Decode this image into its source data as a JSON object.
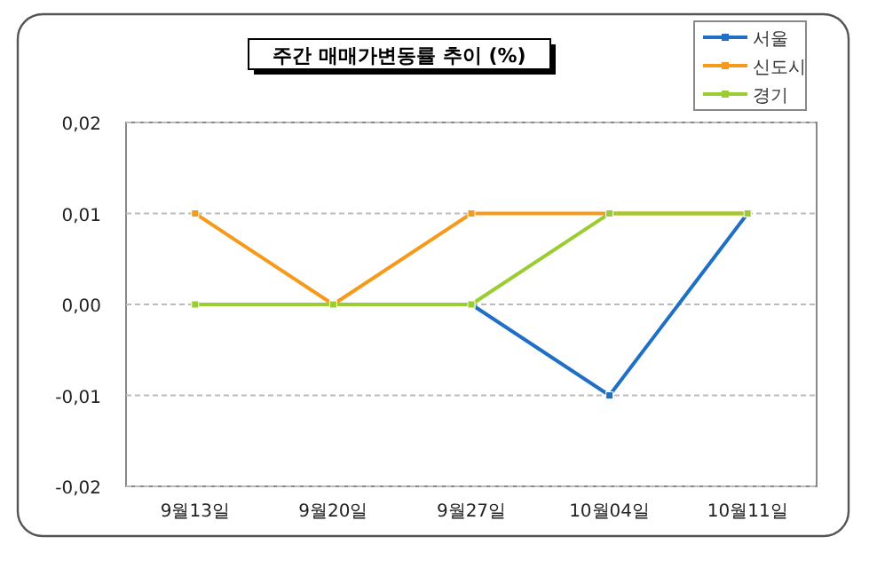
{
  "chart_data": {
    "type": "line",
    "title": "주간 매매가변동률 추이 (%)",
    "categories": [
      "9월13일",
      "9월20일",
      "9월27일",
      "10월04일",
      "10월11일"
    ],
    "series": [
      {
        "name": "서울",
        "color": "#1f6fc5",
        "values": [
          0,
          0,
          0,
          -0.01,
          0.01
        ]
      },
      {
        "name": "신도시",
        "color": "#f59a1b",
        "values": [
          0.01,
          0,
          0.01,
          0.01,
          0.01
        ]
      },
      {
        "name": "경기",
        "color": "#9acd32",
        "values": [
          0,
          0,
          0,
          0.01,
          0.01
        ]
      }
    ],
    "ylim": [
      -0.02,
      0.02
    ],
    "yticks": [
      {
        "value": -0.02,
        "label": "-0,02"
      },
      {
        "value": -0.01,
        "label": "-0,01"
      },
      {
        "value": 0,
        "label": "0,00"
      },
      {
        "value": 0.01,
        "label": "0,01"
      },
      {
        "value": 0.02,
        "label": "0,02"
      }
    ],
    "grid": "y",
    "legend": "top right",
    "marker": "square"
  }
}
